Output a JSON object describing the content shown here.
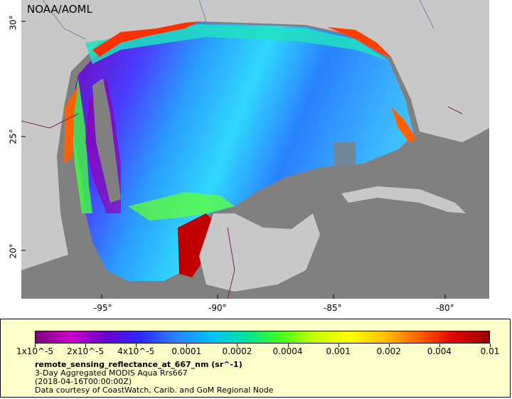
{
  "watermark": "NOAA/AOML",
  "axes": {
    "x_ticks": [
      "-95°",
      "-90°",
      "-85°",
      "-80°"
    ],
    "y_ticks": [
      "30°",
      "25°",
      "20°"
    ]
  },
  "legend": {
    "colorbar_labels": [
      "1x10^-5",
      "2x10^-5",
      "4x10^-5",
      "0.0001",
      "0.0002",
      "0.0004",
      "0.001",
      "0.002",
      "0.004",
      "0.01"
    ],
    "variable": "remote_sensing_reflectance_at_667_nm (sr^-1)",
    "product": "3-Day Aggregated MODIS Aqua Rrs667",
    "date": "(2018-04-16T00:00:00Z)",
    "credit": "Data courtesy of CoastWatch, Carib. and GoM Regional Node"
  },
  "colors": {
    "land": "#c8c8c8",
    "nodata": "#808080",
    "colormap": [
      "#7a007a",
      "#cc00cc",
      "#6a00cc",
      "#2a2aff",
      "#2a80ff",
      "#00c0ff",
      "#00e0a0",
      "#40ff20",
      "#c8ff00",
      "#ffff00",
      "#ffc000",
      "#ff6000",
      "#e00000",
      "#9a0000"
    ]
  }
}
